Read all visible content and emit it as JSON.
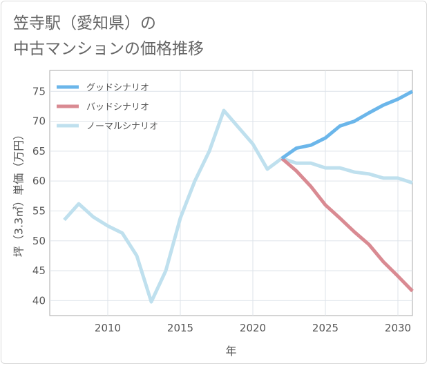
{
  "chart_data": {
    "type": "line",
    "title_line1": "笠寺駅（愛知県）の",
    "title_line2": "中古マンションの価格推移",
    "xlabel": "年",
    "ylabel": "坪（3.3㎡）単価（万円）",
    "xlim": [
      2006,
      2031
    ],
    "ylim": [
      37.5,
      78.5
    ],
    "xticks": [
      2010,
      2015,
      2020,
      2025,
      2030
    ],
    "yticks": [
      40,
      45,
      50,
      55,
      60,
      65,
      70,
      75
    ],
    "grid": true,
    "legend_position": "top-left",
    "series": [
      {
        "name": "グッドシナリオ",
        "color": "#6bb6ea",
        "x": [
          2022,
          2023,
          2024,
          2025,
          2026,
          2027,
          2028,
          2029,
          2030,
          2031
        ],
        "values": [
          63.8,
          65.5,
          66.0,
          67.2,
          69.2,
          70.0,
          71.4,
          72.7,
          73.7,
          75.0
        ]
      },
      {
        "name": "バッドシナリオ",
        "color": "#d98a92",
        "x": [
          2022,
          2023,
          2024,
          2025,
          2026,
          2027,
          2028,
          2029,
          2030,
          2031
        ],
        "values": [
          63.8,
          61.7,
          59.1,
          56.0,
          53.8,
          51.5,
          49.4,
          46.5,
          44.1,
          41.6
        ]
      },
      {
        "name": "ノーマルシナリオ",
        "color": "#bfe0ee",
        "x": [
          2007,
          2008,
          2009,
          2010,
          2011,
          2012,
          2013,
          2014,
          2015,
          2016,
          2017,
          2018,
          2019,
          2020,
          2021,
          2022,
          2023,
          2024,
          2025,
          2026,
          2027,
          2028,
          2029,
          2030,
          2031
        ],
        "values": [
          53.5,
          56.2,
          54.0,
          52.5,
          51.3,
          47.5,
          39.8,
          45.0,
          53.8,
          60.0,
          65.0,
          71.8,
          69.0,
          66.2,
          62.0,
          63.8,
          63.0,
          63.0,
          62.2,
          62.2,
          61.5,
          61.2,
          60.5,
          60.5,
          59.7
        ]
      }
    ]
  }
}
